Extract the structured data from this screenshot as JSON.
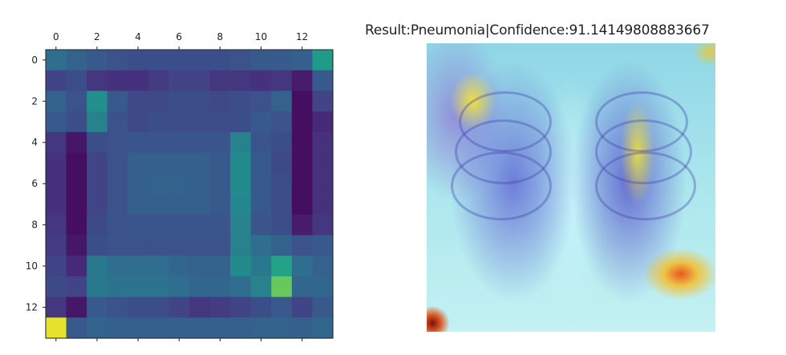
{
  "chart_data": [
    {
      "type": "heatmap",
      "title": "",
      "xlabel": "",
      "ylabel": "",
      "rows": 14,
      "cols": 14,
      "xticks": [
        "0",
        "2",
        "4",
        "6",
        "8",
        "10",
        "12"
      ],
      "yticks": [
        "0",
        "2",
        "4",
        "6",
        "8",
        "10",
        "12"
      ],
      "colormap": "viridis",
      "values": [
        [
          0.45,
          0.4,
          0.35,
          0.32,
          0.3,
          0.3,
          0.3,
          0.3,
          0.3,
          0.32,
          0.35,
          0.36,
          0.38,
          0.68
        ],
        [
          0.25,
          0.3,
          0.2,
          0.18,
          0.18,
          0.22,
          0.25,
          0.25,
          0.2,
          0.2,
          0.18,
          0.2,
          0.1,
          0.35
        ],
        [
          0.4,
          0.32,
          0.62,
          0.35,
          0.28,
          0.28,
          0.3,
          0.3,
          0.28,
          0.3,
          0.32,
          0.4,
          0.05,
          0.25
        ],
        [
          0.35,
          0.3,
          0.55,
          0.32,
          0.28,
          0.3,
          0.3,
          0.3,
          0.3,
          0.3,
          0.35,
          0.32,
          0.05,
          0.15
        ],
        [
          0.2,
          0.08,
          0.3,
          0.32,
          0.33,
          0.33,
          0.33,
          0.33,
          0.33,
          0.55,
          0.33,
          0.3,
          0.05,
          0.18
        ],
        [
          0.18,
          0.05,
          0.25,
          0.32,
          0.38,
          0.38,
          0.38,
          0.38,
          0.35,
          0.6,
          0.35,
          0.28,
          0.05,
          0.18
        ],
        [
          0.18,
          0.05,
          0.25,
          0.32,
          0.38,
          0.4,
          0.4,
          0.38,
          0.35,
          0.6,
          0.35,
          0.3,
          0.05,
          0.18
        ],
        [
          0.18,
          0.05,
          0.25,
          0.32,
          0.38,
          0.38,
          0.38,
          0.38,
          0.35,
          0.58,
          0.35,
          0.3,
          0.05,
          0.18
        ],
        [
          0.2,
          0.05,
          0.28,
          0.32,
          0.33,
          0.33,
          0.33,
          0.33,
          0.33,
          0.55,
          0.33,
          0.3,
          0.1,
          0.2
        ],
        [
          0.22,
          0.08,
          0.3,
          0.32,
          0.32,
          0.32,
          0.32,
          0.32,
          0.32,
          0.55,
          0.45,
          0.4,
          0.32,
          0.35
        ],
        [
          0.25,
          0.15,
          0.5,
          0.45,
          0.45,
          0.45,
          0.42,
          0.4,
          0.4,
          0.6,
          0.5,
          0.72,
          0.45,
          0.4
        ],
        [
          0.28,
          0.25,
          0.5,
          0.48,
          0.48,
          0.48,
          0.45,
          0.42,
          0.42,
          0.45,
          0.55,
          0.85,
          0.42,
          0.42
        ],
        [
          0.2,
          0.08,
          0.35,
          0.32,
          0.3,
          0.3,
          0.25,
          0.2,
          0.22,
          0.25,
          0.3,
          0.35,
          0.25,
          0.35
        ],
        [
          0.98,
          0.35,
          0.4,
          0.38,
          0.38,
          0.38,
          0.38,
          0.38,
          0.38,
          0.38,
          0.4,
          0.4,
          0.38,
          0.42
        ]
      ]
    }
  ],
  "overlay_panel": {
    "title": "Result:Pneumonia|Confidence:91.14149808883667",
    "colormap": "jet overlay on chest x-ray"
  }
}
